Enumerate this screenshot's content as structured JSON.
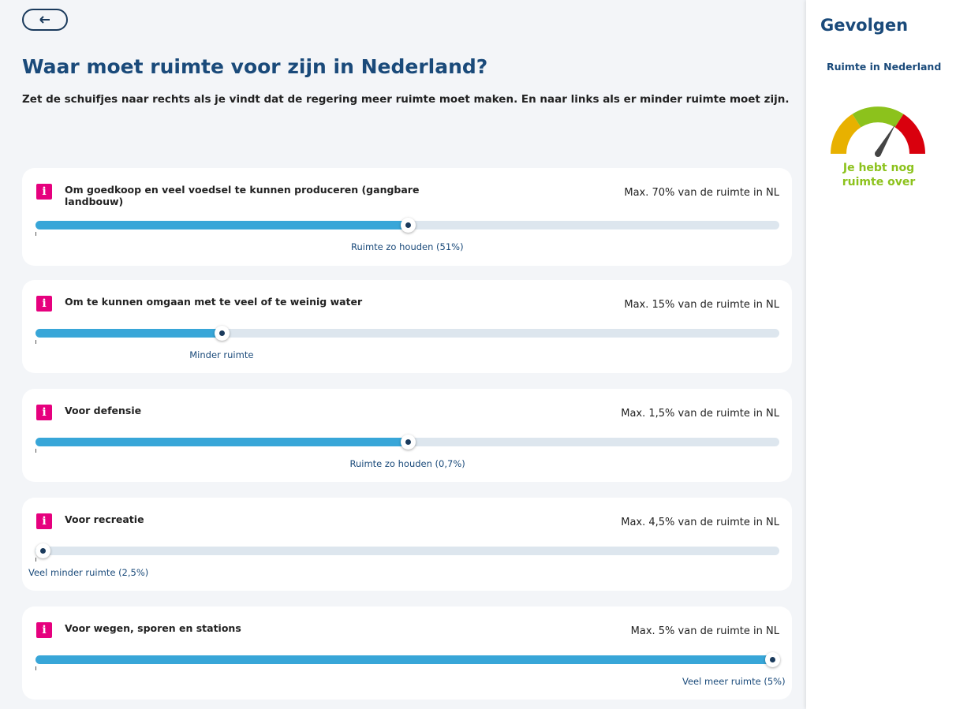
{
  "header": {
    "title": "Waar moet ruimte voor zijn in Nederland?",
    "subtitle": "Zet de schuifjes naar rechts als je vindt dat de regering meer ruimte moet maken. En naar links als er minder ruimte moet zijn."
  },
  "items": [
    {
      "icon": "i",
      "label": "Om goedkoop en veel voedsel te kunnen produceren (gangbare landbouw)",
      "max": "Max. 70% van de ruimte in NL",
      "status": "Ruimte zo houden (51%)",
      "position": 50
    },
    {
      "icon": "i",
      "label": "Om te kunnen omgaan met te veel of te weinig water",
      "max": "Max. 15% van de ruimte in NL",
      "status": "Minder ruimte",
      "position": 25
    },
    {
      "icon": "i",
      "label": "Voor defensie",
      "max": "Max. 1,5% van de ruimte in NL",
      "status": "Ruimte zo houden (0,7%)",
      "position": 50
    },
    {
      "icon": "i",
      "label": "Voor recreatie",
      "max": "Max. 4,5% van de ruimte in NL",
      "status": "Veel minder ruimte (2,5%)",
      "position": 1
    },
    {
      "icon": "i",
      "label": "Voor wegen, sporen en stations",
      "max": "Max. 5% van de ruimte in NL",
      "status": "Veel meer ruimte (5%)",
      "position": 99
    }
  ],
  "sidebar": {
    "title": "Gevolgen",
    "subtitle": "Ruimte in Nederland",
    "gauge_value": 67,
    "gauge_text": "Je hebt nog ruimte over"
  }
}
